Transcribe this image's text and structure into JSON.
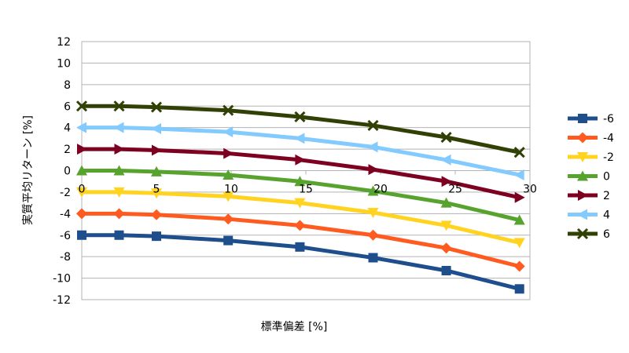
{
  "chart_data": {
    "type": "line",
    "title": "",
    "xlabel": "標準偏差 [%]",
    "ylabel": "実質平均リターン [%]",
    "xlim": [
      0,
      30
    ],
    "ylim": [
      -12,
      12
    ],
    "x_ticks": [
      "0",
      "5",
      "10",
      "15",
      "20",
      "25",
      "30"
    ],
    "y_ticks": [
      "12",
      "10",
      "8",
      "6",
      "4",
      "2",
      "0",
      "-2",
      "-4",
      "-6",
      "-8",
      "-10",
      "-12"
    ],
    "grid": "horizontal",
    "legend_position": "right",
    "x": [
      0,
      2.5,
      5,
      9.8,
      14.6,
      19.5,
      24.4,
      29.3
    ],
    "series": [
      {
        "name": "-6",
        "color": "#1f4e8c",
        "marker": "square",
        "values": [
          -6.0,
          -6.0,
          -6.1,
          -6.5,
          -7.1,
          -8.1,
          -9.3,
          -11.0
        ]
      },
      {
        "name": "-4",
        "color": "#ff5a1f",
        "marker": "diamond",
        "values": [
          -4.0,
          -4.0,
          -4.1,
          -4.5,
          -5.1,
          -6.0,
          -7.2,
          -8.9
        ]
      },
      {
        "name": "-2",
        "color": "#ffd320",
        "marker": "triangle-down",
        "values": [
          -2.0,
          -2.0,
          -2.1,
          -2.4,
          -3.0,
          -3.9,
          -5.1,
          -6.7
        ]
      },
      {
        "name": "0",
        "color": "#57a32e",
        "marker": "triangle-up",
        "values": [
          0.0,
          0.0,
          -0.1,
          -0.4,
          -1.0,
          -1.9,
          -3.0,
          -4.6
        ]
      },
      {
        "name": "2",
        "color": "#7e0021",
        "marker": "triangle-right",
        "values": [
          2.0,
          2.0,
          1.9,
          1.6,
          1.0,
          0.1,
          -1.0,
          -2.5
        ]
      },
      {
        "name": "4",
        "color": "#83caff",
        "marker": "triangle-left",
        "values": [
          4.0,
          4.0,
          3.9,
          3.6,
          3.0,
          2.2,
          1.0,
          -0.4
        ]
      },
      {
        "name": "6",
        "color": "#314004",
        "marker": "cross",
        "values": [
          6.0,
          6.0,
          5.9,
          5.6,
          5.0,
          4.2,
          3.1,
          1.7
        ]
      }
    ]
  }
}
